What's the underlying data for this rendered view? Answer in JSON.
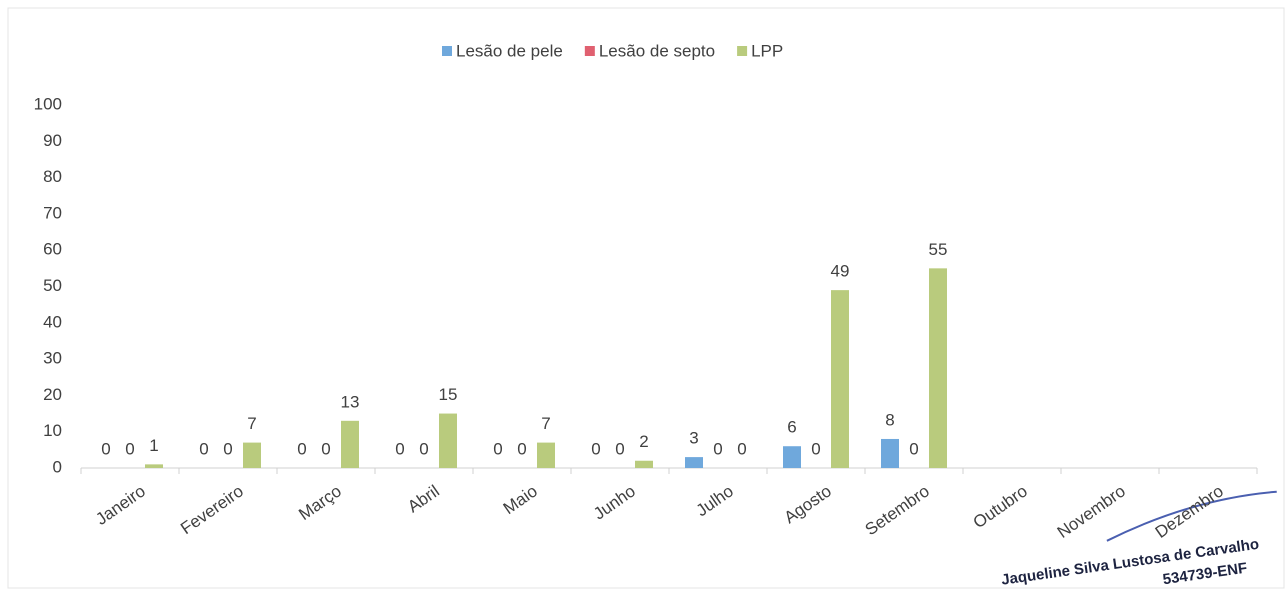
{
  "chart_data": {
    "type": "bar",
    "categories": [
      "Janeiro",
      "Fevereiro",
      "Março",
      "Abril",
      "Maio",
      "Junho",
      "Julho",
      "Agosto",
      "Setembro",
      "Outubro",
      "Novembro",
      "Dezembro"
    ],
    "series": [
      {
        "name": "Lesão de pele",
        "color": "#6fa8dc",
        "values": [
          0,
          0,
          0,
          0,
          0,
          0,
          3,
          6,
          8,
          null,
          null,
          null
        ]
      },
      {
        "name": "Lesão de septo",
        "color": "#e06070",
        "values": [
          0,
          0,
          0,
          0,
          0,
          0,
          0,
          0,
          0,
          null,
          null,
          null
        ]
      },
      {
        "name": "LPP",
        "color": "#b9cb7d",
        "values": [
          1,
          7,
          13,
          15,
          7,
          2,
          0,
          49,
          55,
          null,
          null,
          null
        ]
      }
    ],
    "ylim": [
      0,
      100
    ],
    "yticks": [
      0,
      10,
      20,
      30,
      40,
      50,
      60,
      70,
      80,
      90,
      100
    ],
    "grid": false,
    "legend": "top",
    "annotations": [
      "Jaqueline Silva Lustosa de Carvalho",
      "534739-ENF"
    ]
  }
}
